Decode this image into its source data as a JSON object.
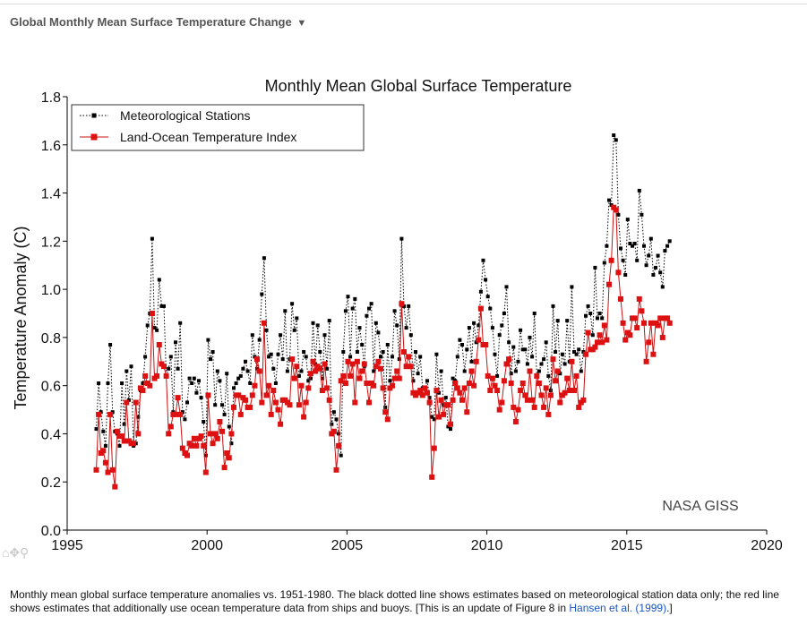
{
  "header": {
    "title": "Global Monthly Mean Surface Temperature Change",
    "toggle_glyph": "▼"
  },
  "tools": {
    "home": "⌂",
    "pan": "✥",
    "zoom": "⚲"
  },
  "caption": {
    "text": "Monthly mean global surface temperature anomalies vs. 1951-1980. The black dotted line shows estimates based on meteorological station data only; the red line shows estimates that additionally use ocean temperature data from ships and buoys. [This is an update of Figure 8 in ",
    "link_text": "Hansen et al. (1999)",
    "text_end": ".]"
  },
  "chart_data": {
    "type": "line",
    "title": "Monthly Mean Global Surface Temperature",
    "xlabel": "",
    "ylabel": "Temperature Anomaly (C)",
    "xlim": [
      1995,
      2020
    ],
    "ylim": [
      0.0,
      1.8
    ],
    "xticks": [
      "1995",
      "2000",
      "2005",
      "2010",
      "2015",
      "2020"
    ],
    "yticks": [
      "0.0",
      "0.2",
      "0.4",
      "0.6",
      "0.8",
      "1.0",
      "1.2",
      "1.4",
      "1.6",
      "1.8"
    ],
    "watermark": "NASA GISS",
    "legend_position": "top-left",
    "x_start": 1996.04,
    "x_step": 0.0833,
    "series": [
      {
        "name": "Meteorological Stations",
        "color": "#000000",
        "style": "dotted",
        "values": [
          0.42,
          0.61,
          0.49,
          0.41,
          0.35,
          0.61,
          0.77,
          0.49,
          0.41,
          0.4,
          0.35,
          0.61,
          0.44,
          0.66,
          0.54,
          0.68,
          0.35,
          0.36,
          0.47,
          0.58,
          0.61,
          0.72,
          0.85,
          0.9,
          1.21,
          0.84,
          0.83,
          1.04,
          0.93,
          0.93,
          0.64,
          0.67,
          0.72,
          0.49,
          0.78,
          0.67,
          0.86,
          0.49,
          0.46,
          0.53,
          0.63,
          0.61,
          0.63,
          0.57,
          0.62,
          0.55,
          0.45,
          0.31,
          0.79,
          0.71,
          0.74,
          0.52,
          0.66,
          0.62,
          0.52,
          0.48,
          0.65,
          0.43,
          0.36,
          0.59,
          0.61,
          0.63,
          0.64,
          0.67,
          0.7,
          0.66,
          0.61,
          0.81,
          0.72,
          0.67,
          0.79,
          0.98,
          1.13,
          0.83,
          0.72,
          0.73,
          0.67,
          0.61,
          0.73,
          0.81,
          0.71,
          0.91,
          0.66,
          0.71,
          0.94,
          0.83,
          0.88,
          0.64,
          0.66,
          0.74,
          0.72,
          0.62,
          0.63,
          0.86,
          0.69,
          0.85,
          0.74,
          0.63,
          0.81,
          0.67,
          0.87,
          0.44,
          0.49,
          0.46,
          0.4,
          0.31,
          0.74,
          0.91,
          0.97,
          0.72,
          0.92,
          0.96,
          0.74,
          0.84,
          0.77,
          0.68,
          0.89,
          0.92,
          0.94,
          0.66,
          0.86,
          0.82,
          0.72,
          0.74,
          0.51,
          0.77,
          0.62,
          0.72,
          0.91,
          0.85,
          0.71,
          1.21,
          0.93,
          0.84,
          0.93,
          0.81,
          0.62,
          0.74,
          0.65,
          0.72,
          0.59,
          0.59,
          0.62,
          0.55,
          0.47,
          0.46,
          0.73,
          0.57,
          0.66,
          0.52,
          0.55,
          0.43,
          0.42,
          0.63,
          0.62,
          0.72,
          0.79,
          0.77,
          0.66,
          0.75,
          0.84,
          0.7,
          0.86,
          0.78,
          0.85,
          0.99,
          1.12,
          1.04,
          0.97,
          0.92,
          0.84,
          0.73,
          0.64,
          0.81,
          0.85,
          0.9,
          1.01,
          0.78,
          0.65,
          0.76,
          0.66,
          0.7,
          0.83,
          0.75,
          0.75,
          0.69,
          0.8,
          0.72,
          0.9,
          0.64,
          0.66,
          0.69,
          0.71,
          0.78,
          0.64,
          0.58,
          0.93,
          0.74,
          0.87,
          0.65,
          0.73,
          0.69,
          0.87,
          0.7,
          1.01,
          0.74,
          0.73,
          0.75,
          0.66,
          0.74,
          0.89,
          0.93,
          0.9,
          0.81,
          1.09,
          0.88,
          0.9,
          0.88,
          1.11,
          1.18,
          1.37,
          1.35,
          1.64,
          1.62,
          1.31,
          1.17,
          1.12,
          1.06,
          1.29,
          1.19,
          1.18,
          1.19,
          1.12,
          1.41,
          1.31,
          1.18,
          1.1,
          1.14,
          1.21,
          1.06,
          1.09,
          1.14,
          1.07,
          1.01,
          1.16,
          1.18,
          1.2
        ]
      },
      {
        "name": "Land-Ocean Temperature Index",
        "color": "#cc1111",
        "style": "solid",
        "values": [
          0.25,
          0.48,
          0.32,
          0.33,
          0.28,
          0.24,
          0.48,
          0.25,
          0.18,
          0.41,
          0.39,
          0.39,
          0.37,
          0.53,
          0.37,
          0.36,
          0.36,
          0.53,
          0.4,
          0.59,
          0.58,
          0.64,
          0.61,
          0.6,
          0.9,
          0.63,
          0.64,
          0.77,
          0.69,
          0.68,
          0.64,
          0.4,
          0.43,
          0.48,
          0.48,
          0.55,
          0.48,
          0.34,
          0.32,
          0.31,
          0.36,
          0.35,
          0.38,
          0.35,
          0.38,
          0.39,
          0.35,
          0.24,
          0.56,
          0.4,
          0.36,
          0.4,
          0.38,
          0.45,
          0.41,
          0.26,
          0.32,
          0.3,
          0.4,
          0.51,
          0.56,
          0.56,
          0.48,
          0.55,
          0.54,
          0.51,
          0.51,
          0.56,
          0.6,
          0.71,
          0.66,
          0.53,
          0.86,
          0.56,
          0.6,
          0.48,
          0.58,
          0.53,
          0.5,
          0.44,
          0.54,
          0.54,
          0.53,
          0.52,
          0.71,
          0.63,
          0.68,
          0.52,
          0.6,
          0.47,
          0.53,
          0.59,
          0.65,
          0.7,
          0.66,
          0.68,
          0.67,
          0.58,
          0.69,
          0.59,
          0.54,
          0.4,
          0.41,
          0.25,
          0.35,
          0.62,
          0.64,
          0.61,
          0.7,
          0.64,
          0.69,
          0.53,
          0.7,
          0.63,
          0.66,
          0.69,
          0.61,
          0.53,
          0.61,
          0.6,
          0.68,
          0.7,
          0.67,
          0.59,
          0.49,
          0.46,
          0.59,
          0.6,
          0.63,
          0.66,
          0.63,
          0.94,
          0.74,
          0.68,
          0.72,
          0.68,
          0.57,
          0.56,
          0.57,
          0.58,
          0.56,
          0.59,
          0.57,
          0.53,
          0.22,
          0.34,
          0.58,
          0.47,
          0.54,
          0.48,
          0.52,
          0.52,
          0.44,
          0.54,
          0.61,
          0.59,
          0.57,
          0.54,
          0.59,
          0.49,
          0.61,
          0.66,
          0.6,
          0.7,
          0.79,
          0.92,
          0.77,
          0.77,
          0.64,
          0.58,
          0.63,
          0.6,
          0.58,
          0.5,
          0.53,
          0.62,
          0.69,
          0.71,
          0.61,
          0.51,
          0.45,
          0.5,
          0.58,
          0.61,
          0.56,
          0.54,
          0.66,
          0.54,
          0.51,
          0.64,
          0.61,
          0.56,
          0.51,
          0.59,
          0.48,
          0.56,
          0.71,
          0.62,
          0.66,
          0.53,
          0.56,
          0.57,
          0.63,
          0.58,
          0.7,
          0.58,
          0.64,
          0.51,
          0.53,
          0.54,
          0.73,
          0.82,
          0.75,
          0.75,
          0.76,
          0.78,
          0.81,
          0.78,
          0.85,
          0.79,
          1.02,
          1.12,
          1.34,
          1.33,
          1.07,
          0.96,
          0.86,
          0.79,
          0.82,
          0.81,
          0.88,
          0.88,
          0.84,
          0.96,
          0.91,
          0.86,
          0.7,
          0.78,
          0.86,
          0.73,
          0.86,
          0.85,
          0.88,
          0.8,
          0.88,
          0.88,
          0.86
        ]
      }
    ]
  }
}
